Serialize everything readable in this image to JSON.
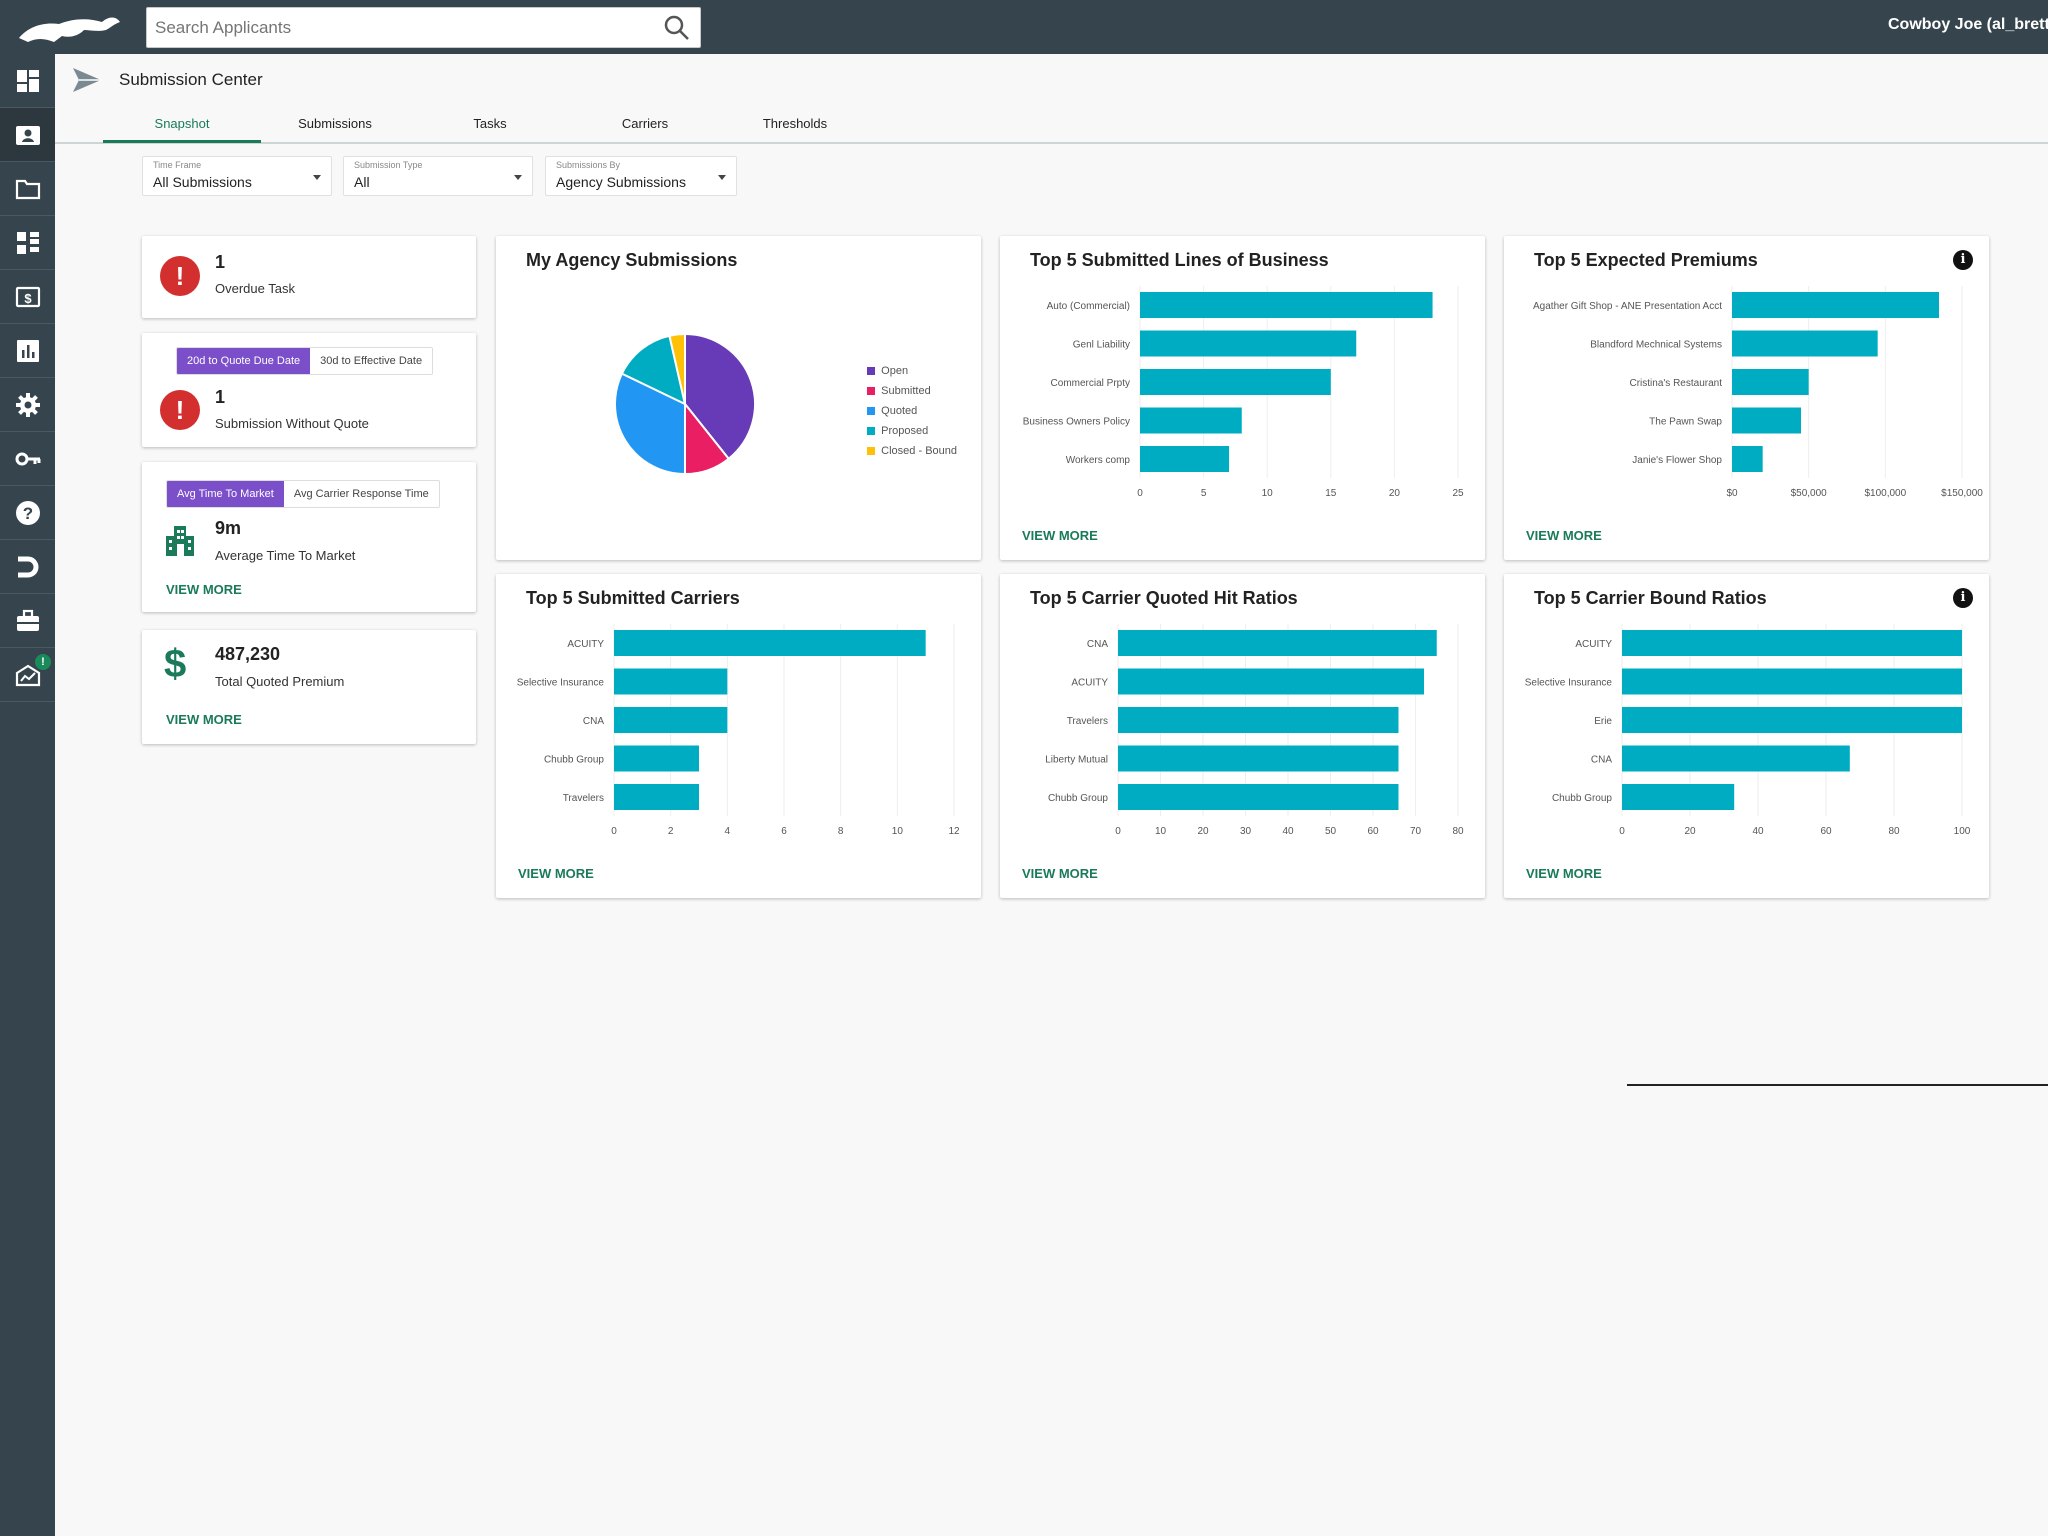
{
  "app": {
    "search_placeholder": "Search Applicants",
    "user": "Cowboy Joe (al_brett"
  },
  "sidebar": {
    "icons": [
      "dashboard-icon",
      "contacts-icon",
      "folder-icon",
      "org-chart-icon",
      "money-icon",
      "bar-chart-icon",
      "gear-icon",
      "key-icon",
      "help-icon",
      "magnet-icon",
      "briefcase-icon",
      "inbox-alert-icon"
    ],
    "badge": "!"
  },
  "header": {
    "title": "Submission Center",
    "tabs": [
      "Snapshot",
      "Submissions",
      "Tasks",
      "Carriers",
      "Thresholds"
    ],
    "active_tab": "Snapshot"
  },
  "filters": [
    {
      "label": "Time Frame",
      "value": "All Submissions"
    },
    {
      "label": "Submission Type",
      "value": "All"
    },
    {
      "label": "Submissions By",
      "value": "Agency Submissions"
    }
  ],
  "stats": {
    "overdue": {
      "count": "1",
      "label": "Overdue Task"
    },
    "quote": {
      "toggle_on": "20d to Quote Due Date",
      "toggle_off": "30d to Effective Date",
      "count": "1",
      "label": "Submission Without Quote"
    },
    "market": {
      "toggle_on": "Avg Time To Market",
      "toggle_off": "Avg Carrier Response Time",
      "value": "9m",
      "label": "Average Time To Market",
      "view_more": "VIEW MORE"
    },
    "premium": {
      "value": "487,230",
      "label": "Total Quoted Premium",
      "view_more": "VIEW MORE"
    }
  },
  "colors": {
    "accent": "#1a7a5a",
    "bar": "#00acc1",
    "sidebar": "#36454d",
    "toggle": "#7b4fc9",
    "alert": "#d32f2f"
  },
  "chart_data": [
    {
      "type": "pie",
      "title": "My Agency Submissions",
      "categories": [
        "Open",
        "Submitted",
        "Quoted",
        "Proposed",
        "Closed - Bound"
      ],
      "values": [
        11,
        3,
        9,
        4,
        1
      ],
      "colors": [
        "#673ab7",
        "#e91e63",
        "#2196f3",
        "#00acc1",
        "#ffc107"
      ]
    },
    {
      "type": "bar",
      "title": "Top 5 Submitted Lines of Business",
      "categories": [
        "Auto (Commercial)",
        "Genl Liability",
        "Commercial Prpty",
        "Business Owners Policy",
        "Workers comp"
      ],
      "values": [
        23,
        17,
        15,
        8,
        7
      ],
      "xlim": [
        0,
        25
      ],
      "ticks": [
        "0",
        "5",
        "10",
        "15",
        "20",
        "25"
      ],
      "view_more": "VIEW MORE"
    },
    {
      "type": "bar",
      "title": "Top 5 Expected Premiums",
      "categories": [
        "Agather Gift Shop - ANE Presentation Acct",
        "Blandford Mechnical Systems",
        "Cristina's Restaurant",
        "The Pawn Swap",
        "Janie's Flower Shop"
      ],
      "values": [
        135000,
        95000,
        50000,
        45000,
        20000
      ],
      "xlim": [
        0,
        150000
      ],
      "ticks": [
        "$0",
        "$50,000",
        "$100,000",
        "$150,000"
      ],
      "view_more": "VIEW MORE",
      "info": "i"
    },
    {
      "type": "bar",
      "title": "Top 5 Submitted Carriers",
      "categories": [
        "ACUITY",
        "Selective Insurance",
        "CNA",
        "Chubb Group",
        "Travelers"
      ],
      "values": [
        11,
        4,
        4,
        3,
        3
      ],
      "xlim": [
        0,
        12
      ],
      "ticks": [
        "0",
        "2",
        "4",
        "6",
        "8",
        "10",
        "12"
      ],
      "view_more": "VIEW MORE"
    },
    {
      "type": "bar",
      "title": "Top 5 Carrier Quoted Hit Ratios",
      "categories": [
        "CNA",
        "ACUITY",
        "Travelers",
        "Liberty Mutual",
        "Chubb Group"
      ],
      "values": [
        75,
        72,
        66,
        66,
        66
      ],
      "xlim": [
        0,
        80
      ],
      "ticks": [
        "0",
        "10",
        "20",
        "30",
        "40",
        "50",
        "60",
        "70",
        "80"
      ],
      "view_more": "VIEW MORE"
    },
    {
      "type": "bar",
      "title": "Top 5 Carrier Bound Ratios",
      "categories": [
        "ACUITY",
        "Selective Insurance",
        "Erie",
        "CNA",
        "Chubb Group"
      ],
      "values": [
        100,
        100,
        100,
        67,
        33
      ],
      "xlim": [
        0,
        100
      ],
      "ticks": [
        "0",
        "20",
        "40",
        "60",
        "80",
        "100"
      ],
      "view_more": "VIEW MORE",
      "info": "i"
    }
  ]
}
